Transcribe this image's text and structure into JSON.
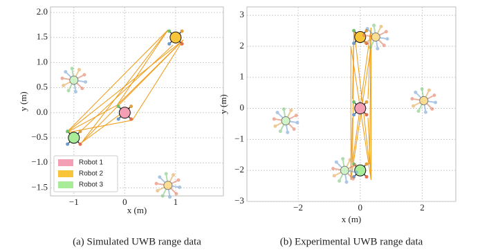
{
  "chart_data": [
    {
      "type": "robots",
      "caption": "(a) Simulated UWB range data",
      "xlabel": "x (m)",
      "ylabel": "y (m)",
      "xlim": [
        -1.46,
        1.94
      ],
      "ylim": [
        -1.66,
        2.11
      ],
      "xticks": [
        {
          "value": -1,
          "label": "−1"
        },
        0,
        1
      ],
      "yticks": [
        {
          "value": 2,
          "label": "2.0"
        },
        {
          "value": 1.5,
          "label": "1.5"
        },
        {
          "value": 1,
          "label": "1.0"
        },
        {
          "value": 0.5,
          "label": "0.5"
        },
        {
          "value": 0,
          "label": "0.0"
        },
        {
          "value": -0.5,
          "label": "−0.5"
        },
        {
          "value": -1,
          "label": "−1.0"
        },
        {
          "value": -1.5,
          "label": "−1.5"
        }
      ],
      "grid": true,
      "legend": "lower left",
      "link_color": "#f0a020",
      "series": [
        {
          "name": "Robot 1",
          "color": "#f4a0b4",
          "x": [
            0
          ],
          "y": [
            0
          ]
        },
        {
          "name": "Robot 2",
          "color": "#f8c43a",
          "x": [
            1,
            0.85
          ],
          "y": [
            1.5,
            -1.45
          ]
        },
        {
          "name": "Robot 3",
          "color": "#a8ec9a",
          "x": [
            -1,
            -1
          ],
          "y": [
            -0.5,
            0.65
          ]
        }
      ],
      "links": [
        {
          "x": [
            -1.15,
            0.85
          ],
          "y": [
            -0.4,
            1.65
          ]
        },
        {
          "x": [
            -1.15,
            1.15
          ],
          "y": [
            -0.4,
            1.45
          ]
        },
        {
          "x": [
            -0.85,
            0.85
          ],
          "y": [
            -0.6,
            1.65
          ]
        },
        {
          "x": [
            -0.85,
            1.15
          ],
          "y": [
            -0.6,
            1.45
          ]
        },
        {
          "x": [
            -0.85,
            0.95
          ],
          "y": [
            -0.35,
            1.35
          ]
        },
        {
          "x": [
            -1.15,
            -0.15
          ],
          "y": [
            -0.4,
            0.15
          ]
        },
        {
          "x": [
            -0.85,
            0.15
          ],
          "y": [
            -0.6,
            0.15
          ]
        },
        {
          "x": [
            -0.15,
            0.85
          ],
          "y": [
            0.15,
            1.65
          ]
        },
        {
          "x": [
            0.15,
            1.15
          ],
          "y": [
            -0.15,
            1.45
          ]
        },
        {
          "x": [
            -0.15,
            1.15
          ],
          "y": [
            0.15,
            1.45
          ]
        },
        {
          "x": [
            -1.15,
            0.15
          ],
          "y": [
            -0.4,
            -0.15
          ]
        }
      ]
    },
    {
      "type": "robots",
      "caption": "(b) Experimental UWB range data",
      "xlabel": "x (m)",
      "ylabel": "y (m)",
      "xlim": [
        -3.65,
        3.08
      ],
      "ylim": [
        -3,
        3.27
      ],
      "xticks": [
        {
          "value": -2,
          "label": "−2"
        },
        0,
        2
      ],
      "yticks": [
        3,
        2,
        1,
        0,
        {
          "value": -1,
          "label": "−1"
        },
        {
          "value": -2,
          "label": "−2"
        },
        {
          "value": -3,
          "label": "−3"
        }
      ],
      "grid": true,
      "link_color": "#f0a020",
      "series": [
        {
          "color": "#f4a0b4",
          "x": [
            0
          ],
          "y": [
            0
          ]
        },
        {
          "color": "#f8c43a",
          "x": [
            0,
            0.5,
            2.05
          ],
          "y": [
            2.3,
            2.3,
            0.25
          ]
        },
        {
          "color": "#a8ec9a",
          "x": [
            0,
            -0.5,
            -2.4
          ],
          "y": [
            -2,
            -2,
            -0.4
          ]
        }
      ],
      "links": [
        {
          "x": [
            -0.2,
            -0.25
          ],
          "y": [
            2.55,
            -1.75
          ]
        },
        {
          "x": [
            0.35,
            0.3
          ],
          "y": [
            2.6,
            -1.8
          ]
        },
        {
          "x": [
            0.35,
            0.35
          ],
          "y": [
            2.0,
            -2.3
          ]
        },
        {
          "x": [
            -0.3,
            -0.3
          ],
          "y": [
            2.0,
            -2.3
          ]
        },
        {
          "x": [
            -0.2,
            0.3
          ],
          "y": [
            2.55,
            -1.8
          ]
        },
        {
          "x": [
            0.35,
            -0.25
          ],
          "y": [
            2.6,
            -1.75
          ]
        },
        {
          "x": [
            -0.3,
            0.35
          ],
          "y": [
            2.0,
            -2.3
          ]
        },
        {
          "x": [
            0.35,
            -0.3
          ],
          "y": [
            2.0,
            -2.3
          ]
        },
        {
          "x": [
            -0.25,
            -0.2
          ],
          "y": [
            0.3,
            2.55
          ]
        },
        {
          "x": [
            0.25,
            0.35
          ],
          "y": [
            0.3,
            2.6
          ]
        },
        {
          "x": [
            -0.25,
            -0.3
          ],
          "y": [
            -0.3,
            -2.3
          ]
        },
        {
          "x": [
            0.25,
            0.35
          ],
          "y": [
            -0.3,
            -2.3
          ]
        }
      ]
    }
  ]
}
